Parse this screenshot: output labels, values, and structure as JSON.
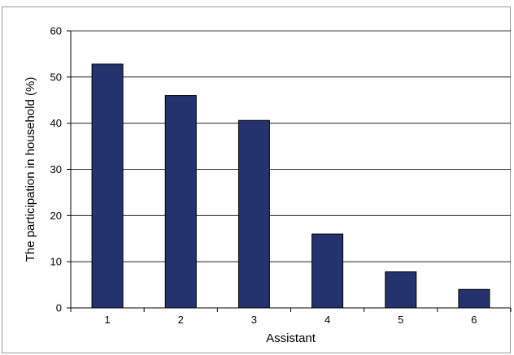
{
  "chart_data": {
    "type": "bar",
    "title": "",
    "xlabel": "Assistant",
    "ylabel": "The participation in household (%)",
    "categories": [
      "1",
      "2",
      "3",
      "4",
      "5",
      "6"
    ],
    "values": [
      52.8,
      46.0,
      40.6,
      16.0,
      7.8,
      4.0
    ],
    "ylim": [
      0,
      60
    ],
    "yticks": [
      "0",
      "10",
      "20",
      "30",
      "40",
      "50",
      "60"
    ],
    "grid": true,
    "legend": "none",
    "colors": {
      "bar_fill": "#24336e",
      "bar_stroke": "#000000",
      "grid": "#000000",
      "frame": "#9a9a9a"
    }
  }
}
